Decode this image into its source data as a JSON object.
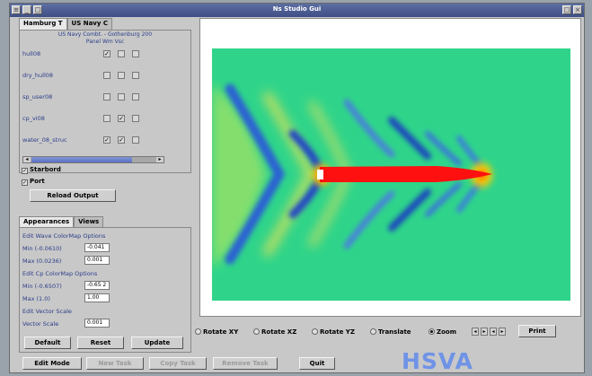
{
  "window": {
    "title": "Ns Studio Gui"
  },
  "tabs": [
    {
      "label": "Hamburg T"
    },
    {
      "label": "US Navy C"
    }
  ],
  "panel": {
    "title_line1": "US Navy Combt. - Gothenburg 200",
    "title_line2": "Panel Wm Vsc",
    "rows": [
      {
        "label": "hull08",
        "checks": [
          "✓",
          "",
          ""
        ]
      },
      {
        "label": "dry_hull08",
        "checks": [
          "",
          "",
          ""
        ]
      },
      {
        "label": "sp_user08",
        "checks": [
          "",
          "",
          ""
        ]
      },
      {
        "label": "cp_vi08",
        "checks": [
          "",
          "✓",
          ""
        ]
      },
      {
        "label": "water_08_struc",
        "checks": [
          "✓",
          "✓",
          ""
        ]
      }
    ],
    "starboard_label": "Starbord",
    "port_label": "Port",
    "reload_label": "Reload Output"
  },
  "subtabs": [
    {
      "label": "Appearances"
    },
    {
      "label": "Views"
    }
  ],
  "options": {
    "wave_header": "Edit Wave ColorMap Options",
    "wave_min_label": "Min (-0.0610)",
    "wave_min_value": "-0.041",
    "wave_max_label": "Max (0.0236)",
    "wave_max_value": "0.001",
    "cp_header": "Edit Cp ColorMap Options",
    "cp_min_label": "Min (-0.6507)",
    "cp_min_value": "-0.65 2",
    "cp_max_label": "Max (1.0)",
    "cp_max_value": "1.00",
    "vector_header": "Edit Vector Scale",
    "vector_label": "Vector Scale",
    "vector_value": "0.001"
  },
  "buttons": {
    "default": "Default",
    "reset": "Reset",
    "update": "Update",
    "edit_mode": "Edit Mode",
    "new_task": "New Task",
    "copy_task": "Copy Task",
    "remove_task": "Remove Task",
    "quit": "Quit",
    "print": "Print"
  },
  "view_modes": [
    {
      "label": "Rotate XY",
      "selected": false
    },
    {
      "label": "Rotate XZ",
      "selected": false
    },
    {
      "label": "Rotate YZ",
      "selected": false
    },
    {
      "label": "Translate",
      "selected": false
    },
    {
      "label": "Zoom",
      "selected": true
    }
  ],
  "nav_arrows": [
    "◂",
    "▸",
    "◂",
    "▸"
  ],
  "logo_text": "HSVA",
  "colors": {
    "titlebar": "#4a5a92",
    "accent_text": "#2b3d8a",
    "hull": "#ff1010",
    "field_base": "#2fd48a",
    "logo": "#6f93e6"
  }
}
